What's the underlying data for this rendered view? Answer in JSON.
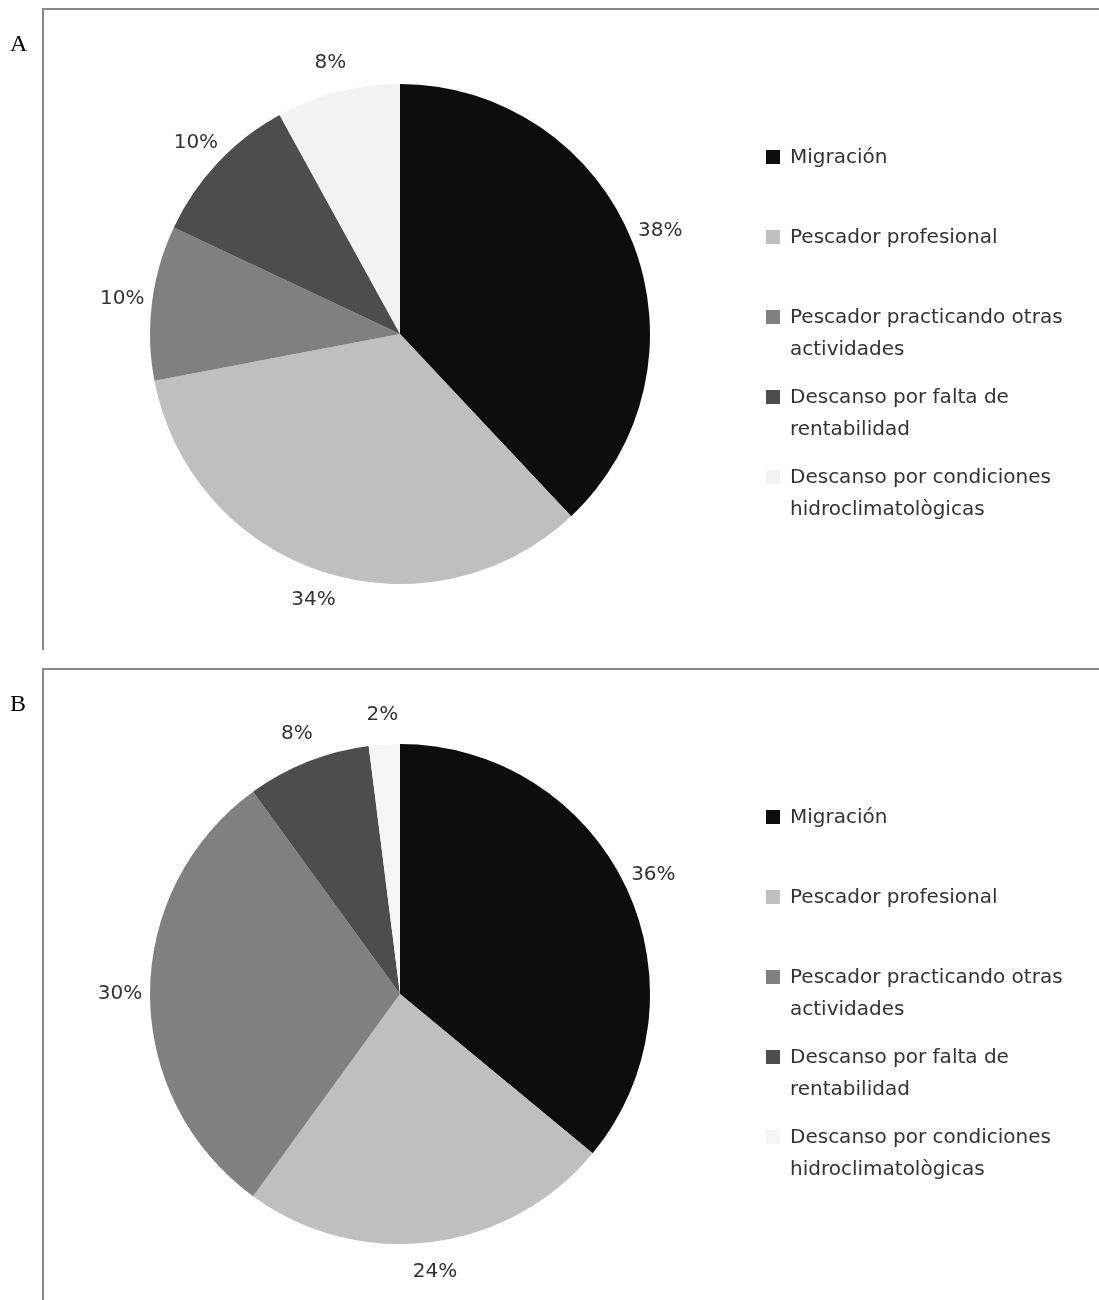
{
  "chart_data": [
    {
      "type": "pie",
      "title": "A",
      "categories": [
        "Migración",
        "Pescador profesional",
        "Pescador practicando otras actividades",
        "Descanso por falta de rentabilidad",
        "Descanso por condiciones hidroclimatològicas"
      ],
      "values": [
        38,
        34,
        10,
        10,
        8
      ],
      "value_labels": [
        "38%",
        "34%",
        "10%",
        "10%",
        "8%"
      ],
      "colors": [
        "#0d0d0d",
        "#bfbfbf",
        "#808080",
        "#4d4d4d",
        "#f2f2f2"
      ],
      "legend": "right"
    },
    {
      "type": "pie",
      "title": "B",
      "categories": [
        "Migración",
        "Pescador profesional",
        "Pescador practicando otras actividades",
        "Descanso por falta de rentabilidad",
        "Descanso por condiciones hidroclimatològicas"
      ],
      "values": [
        36,
        24,
        30,
        8,
        2
      ],
      "value_labels": [
        "36%",
        "24%",
        "30%",
        "8%",
        "2%"
      ],
      "colors": [
        "#0d0d0d",
        "#bfbfbf",
        "#808080",
        "#4d4d4d",
        "#f5f5f5"
      ],
      "legend": "right"
    }
  ]
}
